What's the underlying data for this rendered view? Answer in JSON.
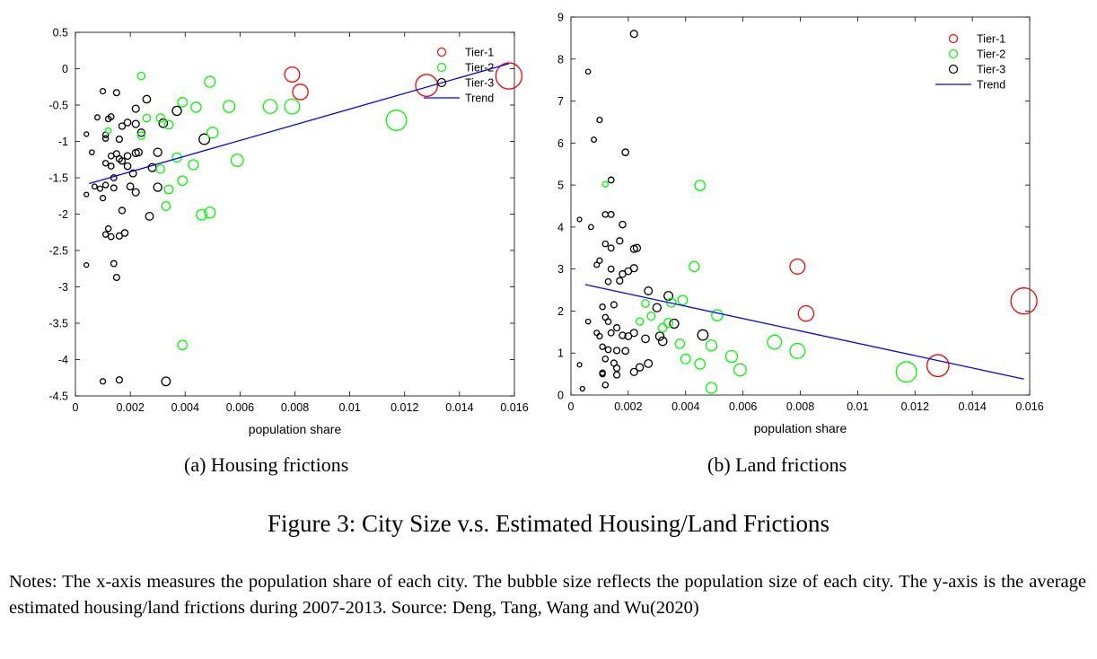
{
  "chart_data": [
    {
      "type": "scatter",
      "xlabel": "population share",
      "ylabel": "",
      "xlim": [
        0,
        0.016
      ],
      "ylim": [
        -4.5,
        0.5
      ],
      "xticks": [
        "0",
        "0.002",
        "0.004",
        "0.006",
        "0.008",
        "0.01",
        "0.012",
        "0.014",
        "0.016"
      ],
      "yticks": [
        "0.5",
        "0",
        "-0.5",
        "-1",
        "-1.5",
        "-2",
        "-2.5",
        "-3",
        "-3.5",
        "-4",
        "-4.5"
      ],
      "legend_position": "top-right",
      "legend": [
        "Tier-1",
        "Tier-2",
        "Tier-3",
        "Trend"
      ],
      "colors": {
        "Tier-1": "#ff0000",
        "Tier-2": "#00ff00",
        "Tier-3": "#000000",
        "Trend": "#0000ff"
      },
      "series": [
        {
          "name": "Tier-1",
          "points": [
            [
              0.0079,
              -0.08
            ],
            [
              0.0082,
              -0.32
            ],
            [
              0.0128,
              -0.23
            ],
            [
              0.0158,
              -0.1
            ]
          ]
        },
        {
          "name": "Tier-2",
          "points": [
            [
              0.0024,
              -0.1
            ],
            [
              0.0049,
              -0.18
            ],
            [
              0.0039,
              -0.46
            ],
            [
              0.0044,
              -0.53
            ],
            [
              0.0056,
              -0.52
            ],
            [
              0.0071,
              -0.52
            ],
            [
              0.0079,
              -0.52
            ],
            [
              0.0117,
              -0.71
            ],
            [
              0.0034,
              -0.77
            ],
            [
              0.005,
              -0.88
            ],
            [
              0.0026,
              -0.68
            ],
            [
              0.0031,
              -0.68
            ],
            [
              0.0037,
              -1.22
            ],
            [
              0.0043,
              -1.32
            ],
            [
              0.0059,
              -1.26
            ],
            [
              0.0031,
              -1.38
            ],
            [
              0.0039,
              -1.54
            ],
            [
              0.0034,
              -1.66
            ],
            [
              0.0033,
              -1.89
            ],
            [
              0.0046,
              -2.01
            ],
            [
              0.0049,
              -1.98
            ],
            [
              0.0039,
              -3.8
            ],
            [
              0.0024,
              -0.92
            ],
            [
              0.0012,
              -0.85
            ]
          ]
        },
        {
          "name": "Tier-3",
          "points": [
            [
              0.001,
              -0.31
            ],
            [
              0.0015,
              -0.33
            ],
            [
              0.0026,
              -0.42
            ],
            [
              0.0037,
              -0.58
            ],
            [
              0.0022,
              -0.55
            ],
            [
              0.0012,
              -0.69
            ],
            [
              0.0013,
              -0.66
            ],
            [
              0.0017,
              -0.79
            ],
            [
              0.0019,
              -0.74
            ],
            [
              0.0022,
              -0.76
            ],
            [
              0.0032,
              -0.75
            ],
            [
              0.0008,
              -0.67
            ],
            [
              0.0011,
              -0.91
            ],
            [
              0.0011,
              -0.96
            ],
            [
              0.0016,
              -0.97
            ],
            [
              0.0024,
              -0.88
            ],
            [
              0.0047,
              -0.97
            ],
            [
              0.0004,
              -0.9
            ],
            [
              0.0006,
              -1.15
            ],
            [
              0.0013,
              -1.2
            ],
            [
              0.0015,
              -1.17
            ],
            [
              0.0016,
              -1.24
            ],
            [
              0.0019,
              -1.2
            ],
            [
              0.0022,
              -1.16
            ],
            [
              0.003,
              -1.15
            ],
            [
              0.0011,
              -1.3
            ],
            [
              0.0013,
              -1.34
            ],
            [
              0.0017,
              -1.27
            ],
            [
              0.0019,
              -1.34
            ],
            [
              0.0023,
              -1.15
            ],
            [
              0.0028,
              -1.36
            ],
            [
              0.0021,
              -1.44
            ],
            [
              0.0007,
              -1.62
            ],
            [
              0.0009,
              -1.65
            ],
            [
              0.0011,
              -1.6
            ],
            [
              0.0014,
              -1.5
            ],
            [
              0.0014,
              -1.64
            ],
            [
              0.002,
              -1.62
            ],
            [
              0.0022,
              -1.7
            ],
            [
              0.003,
              -1.63
            ],
            [
              0.0004,
              -1.73
            ],
            [
              0.001,
              -1.78
            ],
            [
              0.0017,
              -1.95
            ],
            [
              0.0027,
              -2.03
            ],
            [
              0.0012,
              -2.2
            ],
            [
              0.0011,
              -2.28
            ],
            [
              0.0013,
              -2.31
            ],
            [
              0.0016,
              -2.3
            ],
            [
              0.0018,
              -2.26
            ],
            [
              0.0004,
              -2.7
            ],
            [
              0.0014,
              -2.68
            ],
            [
              0.0015,
              -2.87
            ],
            [
              0.001,
              -4.3
            ],
            [
              0.0016,
              -4.28
            ],
            [
              0.0033,
              -4.3
            ]
          ]
        }
      ],
      "trend": {
        "name": "Trend",
        "x": [
          0.0005,
          0.0158
        ],
        "y": [
          -1.58,
          0.07
        ]
      }
    },
    {
      "type": "scatter",
      "xlabel": "population share",
      "ylabel": "",
      "xlim": [
        0,
        0.016
      ],
      "ylim": [
        0,
        9
      ],
      "xticks": [
        "0",
        "0.002",
        "0.004",
        "0.006",
        "0.008",
        "0.01",
        "0.012",
        "0.014",
        "0.016"
      ],
      "yticks": [
        "9",
        "8",
        "7",
        "6",
        "5",
        "4",
        "3",
        "2",
        "1",
        "0"
      ],
      "legend_position": "top-right",
      "legend": [
        "Tier-1",
        "Tier-2",
        "Tier-3",
        "Trend"
      ],
      "colors": {
        "Tier-1": "#ff0000",
        "Tier-2": "#00ff00",
        "Tier-3": "#000000",
        "Trend": "#0000ff"
      },
      "series": [
        {
          "name": "Tier-1",
          "points": [
            [
              0.0079,
              3.06
            ],
            [
              0.0082,
              1.94
            ],
            [
              0.0128,
              0.7
            ],
            [
              0.0158,
              2.24
            ]
          ]
        },
        {
          "name": "Tier-2",
          "points": [
            [
              0.0012,
              5.02
            ],
            [
              0.0045,
              4.99
            ],
            [
              0.0043,
              3.06
            ],
            [
              0.0039,
              2.26
            ],
            [
              0.0035,
              2.2
            ],
            [
              0.0026,
              2.18
            ],
            [
              0.0028,
              1.88
            ],
            [
              0.0051,
              1.9
            ],
            [
              0.0034,
              1.72
            ],
            [
              0.0024,
              1.75
            ],
            [
              0.0032,
              1.6
            ],
            [
              0.0071,
              1.26
            ],
            [
              0.0079,
              1.05
            ],
            [
              0.0038,
              1.22
            ],
            [
              0.0049,
              1.18
            ],
            [
              0.0056,
              0.92
            ],
            [
              0.004,
              0.86
            ],
            [
              0.0045,
              0.74
            ],
            [
              0.0059,
              0.6
            ],
            [
              0.0117,
              0.55
            ],
            [
              0.0049,
              0.17
            ]
          ]
        },
        {
          "name": "Tier-3",
          "points": [
            [
              0.0022,
              8.6
            ],
            [
              0.0006,
              7.7
            ],
            [
              0.001,
              6.55
            ],
            [
              0.0008,
              6.08
            ],
            [
              0.0019,
              5.78
            ],
            [
              0.0014,
              5.12
            ],
            [
              0.0003,
              4.18
            ],
            [
              0.0012,
              4.3
            ],
            [
              0.0014,
              4.3
            ],
            [
              0.0018,
              4.06
            ],
            [
              0.0007,
              4.0
            ],
            [
              0.0012,
              3.6
            ],
            [
              0.0014,
              3.5
            ],
            [
              0.0017,
              3.67
            ],
            [
              0.0022,
              3.48
            ],
            [
              0.0023,
              3.5
            ],
            [
              0.001,
              3.2
            ],
            [
              0.0009,
              3.1
            ],
            [
              0.0014,
              3.0
            ],
            [
              0.0018,
              2.88
            ],
            [
              0.002,
              2.95
            ],
            [
              0.0022,
              3.02
            ],
            [
              0.0017,
              2.72
            ],
            [
              0.0013,
              2.7
            ],
            [
              0.0027,
              2.48
            ],
            [
              0.0034,
              2.36
            ],
            [
              0.0011,
              2.1
            ],
            [
              0.0015,
              2.15
            ],
            [
              0.003,
              2.08
            ],
            [
              0.0006,
              1.75
            ],
            [
              0.0012,
              1.85
            ],
            [
              0.0013,
              1.75
            ],
            [
              0.0036,
              1.7
            ],
            [
              0.0046,
              1.43
            ],
            [
              0.0009,
              1.48
            ],
            [
              0.001,
              1.4
            ],
            [
              0.0014,
              1.48
            ],
            [
              0.0016,
              1.6
            ],
            [
              0.0018,
              1.42
            ],
            [
              0.002,
              1.4
            ],
            [
              0.0022,
              1.48
            ],
            [
              0.0026,
              1.34
            ],
            [
              0.0031,
              1.4
            ],
            [
              0.0032,
              1.28
            ],
            [
              0.0011,
              1.15
            ],
            [
              0.0013,
              1.08
            ],
            [
              0.0016,
              1.06
            ],
            [
              0.0019,
              1.05
            ],
            [
              0.0012,
              0.86
            ],
            [
              0.0015,
              0.76
            ],
            [
              0.0011,
              0.5
            ],
            [
              0.0016,
              0.64
            ],
            [
              0.0022,
              0.55
            ],
            [
              0.0024,
              0.66
            ],
            [
              0.0027,
              0.75
            ],
            [
              0.0016,
              0.48
            ],
            [
              0.0003,
              0.72
            ],
            [
              0.0011,
              0.53
            ],
            [
              0.0012,
              0.24
            ],
            [
              0.0004,
              0.15
            ]
          ]
        }
      ],
      "trend": {
        "name": "Trend",
        "x": [
          0.0005,
          0.0158
        ],
        "y": [
          2.63,
          0.38
        ]
      }
    }
  ],
  "subcaptions": {
    "a": "(a)  Housing frictions",
    "b": "(b)  Land frictions"
  },
  "figure_caption": "Figure 3: City Size v.s. Estimated Housing/Land Frictions",
  "notes": "Notes: The x-axis measures the population share of each city. The bubble size reflects the population size of each city. The y-axis is the average estimated housing/land frictions during 2007-2013. Source: Deng, Tang, Wang and Wu(2020)"
}
